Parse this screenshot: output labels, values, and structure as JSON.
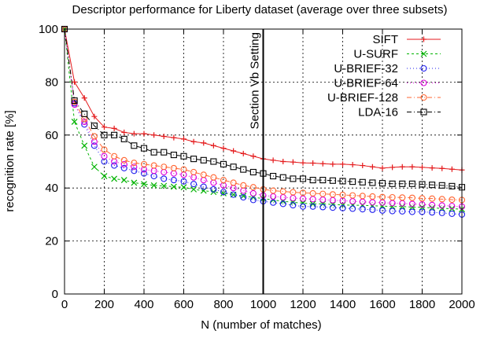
{
  "chart_data": {
    "type": "line",
    "title": "Descriptor performance for Liberty dataset (average over three subsets)",
    "xlabel": "N (number of matches)",
    "ylabel": "recognition rate [%]",
    "xlim": [
      0,
      2000
    ],
    "ylim": [
      0,
      100
    ],
    "xticks": [
      0,
      200,
      400,
      600,
      800,
      1000,
      1200,
      1400,
      1600,
      1800,
      2000
    ],
    "yticks": [
      0,
      20,
      40,
      60,
      80,
      100
    ],
    "grid": true,
    "legend_position": "top-right",
    "annotation": {
      "text": "Section Vb Setting",
      "x": 1000
    },
    "x": [
      0,
      50,
      100,
      150,
      200,
      250,
      300,
      350,
      400,
      450,
      500,
      550,
      600,
      650,
      700,
      750,
      800,
      850,
      900,
      950,
      1000,
      1050,
      1100,
      1150,
      1200,
      1250,
      1300,
      1350,
      1400,
      1450,
      1500,
      1550,
      1600,
      1650,
      1700,
      1750,
      1800,
      1850,
      1900,
      1950,
      2000
    ],
    "series": [
      {
        "name": "SIFT",
        "color": "#e41a1c",
        "marker": "plus",
        "dash": "",
        "values": [
          100,
          80,
          74,
          67,
          63,
          62.5,
          61,
          60.5,
          60.5,
          60,
          59.5,
          59,
          58.5,
          57.5,
          57,
          56,
          55,
          54,
          53,
          52,
          51,
          50.5,
          50,
          49.8,
          49.5,
          49.4,
          49.2,
          49,
          49,
          48.8,
          48.5,
          48,
          47.5,
          47.8,
          48,
          48,
          47.8,
          47.6,
          47.4,
          47.1,
          46.8
        ]
      },
      {
        "name": "U-SURF",
        "color": "#00b300",
        "marker": "x",
        "dash": "3,3",
        "values": [
          100,
          65,
          56,
          48,
          44.5,
          43.5,
          43,
          42,
          41.5,
          41,
          40.8,
          40.5,
          40.3,
          39.5,
          39,
          38.5,
          38,
          37.5,
          37,
          36.5,
          36,
          35.5,
          35,
          34.6,
          34.3,
          34,
          34,
          33.8,
          33.6,
          33.5,
          33.5,
          33.3,
          33.2,
          33,
          33,
          32.8,
          32.7,
          32.5,
          32.3,
          32.2,
          32
        ]
      },
      {
        "name": "U-BRIEF-32",
        "color": "#2020ee",
        "marker": "circle",
        "dash": "1,3",
        "values": [
          100,
          72,
          64,
          56,
          50,
          48.5,
          47.5,
          46.5,
          45.5,
          44.5,
          43.5,
          43,
          42.5,
          41.5,
          40.5,
          39.5,
          38.5,
          37.5,
          36.5,
          35.5,
          35,
          34.5,
          34,
          33.5,
          33,
          33,
          32.8,
          32.6,
          32.4,
          32.2,
          32,
          31.8,
          31.5,
          31.3,
          31.2,
          31,
          31,
          30.8,
          30.6,
          30.3,
          30
        ]
      },
      {
        "name": "U-BRIEF-64",
        "color": "#dd00dd",
        "marker": "circle",
        "dash": "1,3",
        "values": [
          100,
          71.5,
          65,
          57.5,
          52,
          50,
          49,
          48,
          47,
          46.5,
          46,
          45.5,
          45,
          44,
          43,
          42,
          41,
          40,
          39,
          38,
          37.2,
          36.8,
          36.5,
          36.2,
          36,
          35.8,
          35.6,
          35.4,
          35.2,
          35,
          34.8,
          34.6,
          34.5,
          34.3,
          34.2,
          34,
          33.8,
          33.6,
          33.4,
          33.2,
          33
        ]
      },
      {
        "name": "U-BRIEF-128",
        "color": "#ff6633",
        "marker": "circle",
        "dash": "6,3,1,3",
        "values": [
          100,
          72.5,
          66,
          59.5,
          54.5,
          52,
          50.5,
          49.5,
          49,
          48.5,
          48,
          47.5,
          47,
          46,
          45,
          44,
          43,
          42,
          41,
          40.3,
          39.5,
          39,
          38.7,
          38.4,
          38.2,
          38,
          37.8,
          37.6,
          37.4,
          37.2,
          37,
          36.8,
          36.6,
          36.5,
          36.4,
          36.3,
          36.1,
          36,
          35.8,
          35.6,
          35.5
        ]
      },
      {
        "name": "LDA-16",
        "color": "#000000",
        "marker": "square",
        "dash": "6,3,1,3",
        "values": [
          100,
          73,
          68,
          63.5,
          60,
          60,
          58.5,
          56,
          55,
          53.5,
          53.5,
          52.5,
          52,
          51,
          50.5,
          50,
          49,
          48,
          47,
          46,
          45.5,
          44.5,
          44,
          43.5,
          43.5,
          43,
          43,
          42.8,
          42.6,
          42.4,
          42.2,
          42,
          41.8,
          41.6,
          41.6,
          41.6,
          41.4,
          41.2,
          41,
          40.7,
          40.3
        ]
      }
    ]
  }
}
